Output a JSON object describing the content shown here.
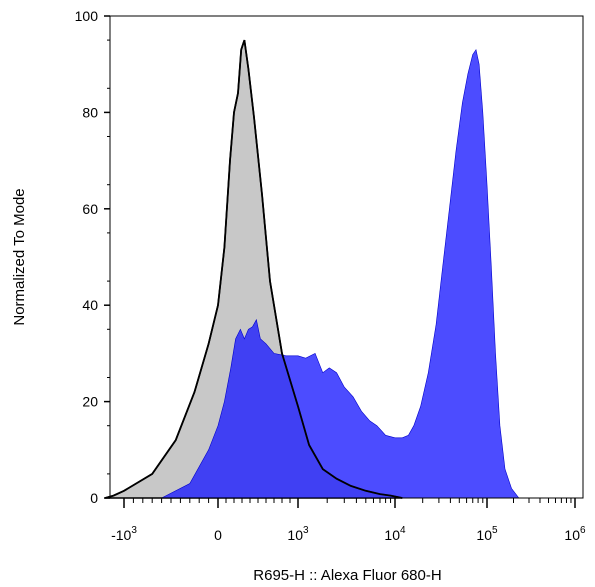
{
  "chart_data": {
    "type": "area",
    "title": "",
    "xlabel": "R695-H :: Alexa Fluor 680-H",
    "ylabel": "Normalized To Mode",
    "xscale": "biexponential",
    "ylim": [
      0,
      100
    ],
    "grid": false,
    "y_ticks": [
      {
        "label": "0",
        "value": 0
      },
      {
        "label": "20",
        "value": 20
      },
      {
        "label": "40",
        "value": 40
      },
      {
        "label": "60",
        "value": 60
      },
      {
        "label": "80",
        "value": 80
      },
      {
        "label": "100",
        "value": 100
      }
    ],
    "x_ticks": [
      {
        "base": "-10",
        "exp": "3",
        "value": -1000
      },
      {
        "base": "0",
        "exp": "",
        "value": 0
      },
      {
        "base": "10",
        "exp": "3",
        "value": 1000
      },
      {
        "base": "10",
        "exp": "4",
        "value": 10000
      },
      {
        "base": "10",
        "exp": "5",
        "value": 100000
      },
      {
        "base": "10",
        "exp": "6",
        "value": 1000000
      }
    ],
    "series": [
      {
        "color": "#c8c8c8",
        "outline": "#000000",
        "points": [
          [
            -1600,
            0
          ],
          [
            -1300,
            0.5
          ],
          [
            -1000,
            1.5
          ],
          [
            -700,
            5
          ],
          [
            -450,
            12
          ],
          [
            -250,
            22
          ],
          [
            -100,
            32
          ],
          [
            0,
            40
          ],
          [
            80,
            52
          ],
          [
            150,
            70
          ],
          [
            200,
            80
          ],
          [
            250,
            84
          ],
          [
            290,
            93
          ],
          [
            330,
            95
          ],
          [
            380,
            89
          ],
          [
            450,
            79
          ],
          [
            550,
            63
          ],
          [
            650,
            45
          ],
          [
            800,
            30
          ],
          [
            1000,
            19
          ],
          [
            1300,
            11
          ],
          [
            1800,
            6
          ],
          [
            2500,
            4
          ],
          [
            3500,
            2.5
          ],
          [
            5000,
            1.5
          ],
          [
            7000,
            0.8
          ],
          [
            9000,
            0.5
          ],
          [
            12000,
            0
          ]
        ]
      },
      {
        "color": "#1a1aff",
        "outline": "#0000cc",
        "points": [
          [
            -600,
            0
          ],
          [
            -300,
            3
          ],
          [
            -100,
            10
          ],
          [
            0,
            15
          ],
          [
            80,
            20
          ],
          [
            160,
            27
          ],
          [
            220,
            33
          ],
          [
            280,
            35
          ],
          [
            330,
            33
          ],
          [
            380,
            35
          ],
          [
            430,
            35.5
          ],
          [
            480,
            37
          ],
          [
            530,
            33
          ],
          [
            600,
            32
          ],
          [
            700,
            30
          ],
          [
            850,
            29.5
          ],
          [
            1000,
            29.5
          ],
          [
            1200,
            29
          ],
          [
            1500,
            30
          ],
          [
            1800,
            26
          ],
          [
            2100,
            27
          ],
          [
            2500,
            26
          ],
          [
            3000,
            23
          ],
          [
            3700,
            21
          ],
          [
            4500,
            18
          ],
          [
            5500,
            16
          ],
          [
            6500,
            15
          ],
          [
            8000,
            13
          ],
          [
            10000,
            12.5
          ],
          [
            12000,
            12.5
          ],
          [
            14000,
            13
          ],
          [
            16000,
            15
          ],
          [
            19000,
            19
          ],
          [
            23000,
            26
          ],
          [
            28000,
            36
          ],
          [
            33000,
            48
          ],
          [
            39000,
            60
          ],
          [
            46000,
            72
          ],
          [
            54000,
            82
          ],
          [
            62000,
            88
          ],
          [
            70000,
            92
          ],
          [
            76000,
            93
          ],
          [
            82000,
            90
          ],
          [
            90000,
            80
          ],
          [
            100000,
            65
          ],
          [
            112000,
            48
          ],
          [
            125000,
            30
          ],
          [
            140000,
            15
          ],
          [
            160000,
            6
          ],
          [
            190000,
            2
          ],
          [
            230000,
            0
          ]
        ]
      }
    ]
  }
}
